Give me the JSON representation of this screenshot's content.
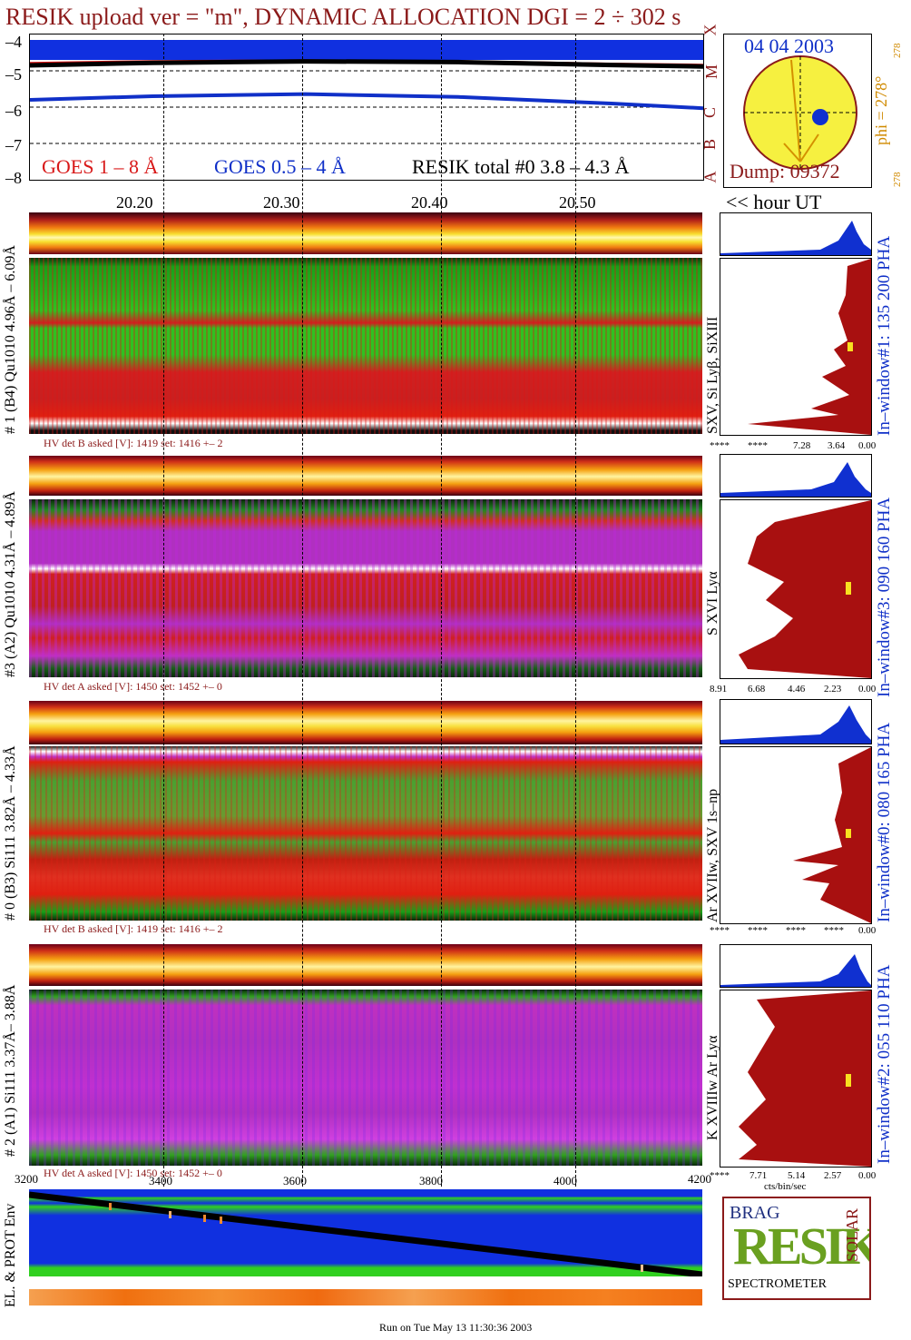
{
  "header": {
    "title": "RESIK upload ver = \"m\", DYNAMIC ALLOCATION  DGI =   2 ÷ 302 s"
  },
  "goes": {
    "legend_red": "GOES 1 – 8 Å",
    "legend_blue": "GOES 0.5 – 4 Å",
    "legend_black": "RESIK total #0  3.8 – 4.3 Å",
    "y_ticks": [
      "–4",
      "–5",
      "–6",
      "–7",
      "–8"
    ],
    "class_letters": [
      "X",
      "M",
      "C",
      "B",
      "A"
    ],
    "x_ticks": [
      "20.20",
      "20.30",
      "20.40",
      "20.50"
    ],
    "x_label": "<< hour UT"
  },
  "sun": {
    "date": "04 04 2003",
    "phi": "phi = 278°",
    "phi_small": "278",
    "phi_small_bottom": "278",
    "dump": "Dump: 09372"
  },
  "channels": [
    {
      "left_label": "# 1 (B4) Qu1010 4.96Å – 6.09Å",
      "hv": "HV det B asked [V]:  1419 set:  1416 +–    2",
      "line_label": "SXV, Si Lyβ, SiXIII",
      "window": "In–window#1:  135 200 PHA",
      "axis": [
        "****",
        "****",
        "7.28",
        "3.64",
        "0.00"
      ]
    },
    {
      "left_label": "#3 (A2) Qu1010  4.31Å – 4.89Å",
      "hv": "HV det A asked [V]:  1450 set:  1452 +–    0",
      "line_label": "S XVI Lyα",
      "window": "In–window#3:  090 160 PHA",
      "axis": [
        "8.91",
        "6.68",
        "4.46",
        "2.23",
        "0.00"
      ]
    },
    {
      "left_label": "# 0 (B3) Si111  3.82Å – 4.33Å",
      "hv": "HV det B asked [V]:  1419 set:  1416 +–    2",
      "line_label": "Ar XVIIw,  SXV 1s–np",
      "window": "In–window#0:  080 165 PHA",
      "axis": [
        "****",
        "****",
        "****",
        "****",
        "0.00"
      ]
    },
    {
      "left_label": "# 2 (A1) Si111  3.37Å– 3.88Å",
      "hv": "HV det A asked [V]:  1450 set:  1452 +–    0",
      "line_label": "K XVIIIw  Ar Lyα",
      "window": "In–window#2:  055 110 PHA",
      "axis": [
        "****",
        "7.71",
        "5.14",
        "2.57",
        "0.00"
      ],
      "axis_unit": "cts/bin/sec"
    }
  ],
  "env": {
    "label": "EL. & PROT Env",
    "x_ticks": [
      "3200",
      "3400",
      "3600",
      "3800",
      "4000",
      "4200"
    ]
  },
  "logo": {
    "letters": "RESIK",
    "small_top": "BRAG",
    "side": "SOLAR",
    "bottom": "SPECTROMETER"
  },
  "footer": "Run on Tue May 13 11:30:36 2003",
  "chart_data": {
    "type": "line",
    "title": "RESIK upload ver = \"m\", DYNAMIC ALLOCATION  DGI =   2 ÷ 302 s",
    "xlabel": "<< hour UT",
    "ylabel": "",
    "x_tick_labels": [
      "20.20",
      "20.30",
      "20.40",
      "20.50"
    ],
    "ylim": [
      -8,
      -4
    ],
    "series": [
      {
        "name": "GOES 1 – 8 Å",
        "color": "#d81818",
        "x": [
          20.12,
          20.2,
          20.3,
          20.4,
          20.5,
          20.56
        ],
        "values": [
          -4.78,
          -4.73,
          -4.71,
          -4.73,
          -4.8,
          -4.83
        ]
      },
      {
        "name": "GOES 0.5 – 4 Å",
        "color": "#1030c8",
        "x": [
          20.12,
          20.2,
          20.3,
          20.4,
          20.5,
          20.56
        ],
        "values": [
          -5.8,
          -5.7,
          -5.64,
          -5.72,
          -5.9,
          -6.03
        ]
      },
      {
        "name": "RESIK total #0  3.8 – 4.3 Å",
        "color": "#000000",
        "x": [
          20.12,
          20.2,
          20.3,
          20.4,
          20.5,
          20.56
        ],
        "values": [
          -4.85,
          -4.78,
          -4.74,
          -4.76,
          -4.84,
          -4.88
        ]
      }
    ]
  }
}
